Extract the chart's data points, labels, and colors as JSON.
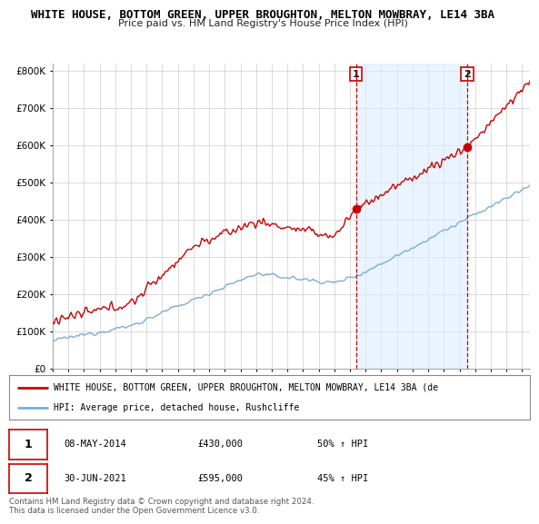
{
  "title_line1": "WHITE HOUSE, BOTTOM GREEN, UPPER BROUGHTON, MELTON MOWBRAY, LE14 3BA",
  "title_line2": "Price paid vs. HM Land Registry's House Price Index (HPI)",
  "background_color": "#ffffff",
  "grid_color": "#cccccc",
  "hpi_color": "#7bafd4",
  "hpi_fill_color": "#ddeeff",
  "price_color": "#cc0000",
  "legend_price_label": "WHITE HOUSE, BOTTOM GREEN, UPPER BROUGHTON, MELTON MOWBRAY, LE14 3BA (de",
  "legend_hpi_label": "HPI: Average price, detached house, Rushcliffe",
  "note1_date": "08-MAY-2014",
  "note1_price": "£430,000",
  "note1_pct": "50% ↑ HPI",
  "note2_date": "30-JUN-2021",
  "note2_price": "£595,000",
  "note2_pct": "45% ↑ HPI",
  "footer": "Contains HM Land Registry data © Crown copyright and database right 2024.\nThis data is licensed under the Open Government Licence v3.0.",
  "ylim": [
    0,
    820000
  ],
  "yticks": [
    0,
    100000,
    200000,
    300000,
    400000,
    500000,
    600000,
    700000,
    800000
  ],
  "start_year": 1995,
  "end_year": 2025,
  "marker1_value": 430000,
  "marker2_value": 595000,
  "t1_year": 2014.375,
  "t2_year": 2021.5
}
